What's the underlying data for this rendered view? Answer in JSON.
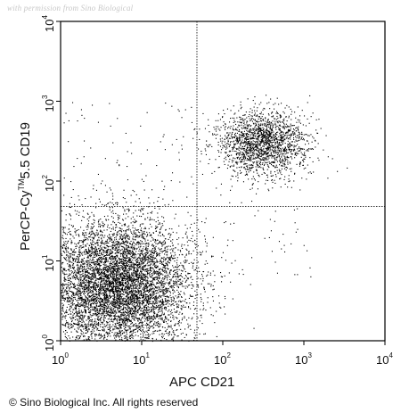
{
  "watermark": "with permission from Sino Biological",
  "copyright": "© Sino Biological Inc. All rights reserved",
  "chart_data": {
    "type": "scatter",
    "title": "",
    "xlabel": "APC CD21",
    "ylabel": {
      "prefix": "PerCP-Cy",
      "sup": "TM",
      "suffix": "5.5 CD19"
    },
    "x_scale": "log",
    "y_scale": "log",
    "xlim": [
      1,
      10000
    ],
    "ylim": [
      1,
      10000
    ],
    "x_ticks": [
      {
        "base": "10",
        "exp": "0",
        "value": 1
      },
      {
        "base": "10",
        "exp": "1",
        "value": 10
      },
      {
        "base": "10",
        "exp": "2",
        "value": 100
      },
      {
        "base": "10",
        "exp": "3",
        "value": 1000
      },
      {
        "base": "10",
        "exp": "4",
        "value": 10000
      }
    ],
    "y_ticks": [
      {
        "base": "10",
        "exp": "0",
        "value": 1
      },
      {
        "base": "10",
        "exp": "1",
        "value": 10
      },
      {
        "base": "10",
        "exp": "2",
        "value": 100
      },
      {
        "base": "10",
        "exp": "3",
        "value": 1000
      },
      {
        "base": "10",
        "exp": "4",
        "value": 10000
      }
    ],
    "quadrant_gate": {
      "x": 48,
      "y": 48
    },
    "populations": [
      {
        "name": "CD19-CD21- cluster",
        "center": [
          5,
          5
        ],
        "spread_decades": [
          0.45,
          0.4
        ],
        "count": 7000,
        "color": "#000000"
      },
      {
        "name": "CD19+CD21+ cluster",
        "center": [
          300,
          300
        ],
        "spread_decades": [
          0.28,
          0.2
        ],
        "count": 1800,
        "color": "#000000"
      }
    ],
    "grid": false
  }
}
